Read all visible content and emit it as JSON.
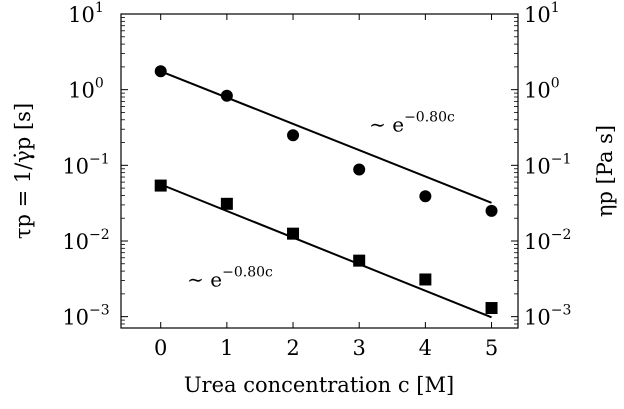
{
  "chart_data": {
    "type": "scatter",
    "xlabel": "Urea concentration c [M]",
    "ylabel_left": "τp = 1/γ̇p [s]",
    "ylabel_right": "ηp [Pa s]",
    "x_ticks": [
      "0",
      "1",
      "2",
      "3",
      "4",
      "5"
    ],
    "y_ticks_left": [
      {
        "base": "10",
        "exp": "−3"
      },
      {
        "base": "10",
        "exp": "−2"
      },
      {
        "base": "10",
        "exp": "−1"
      },
      {
        "base": "10",
        "exp": "0"
      },
      {
        "base": "10",
        "exp": "1"
      }
    ],
    "y_ticks_right": [
      {
        "base": "10",
        "exp": "−3"
      },
      {
        "base": "10",
        "exp": "−2"
      },
      {
        "base": "10",
        "exp": "−1"
      },
      {
        "base": "10",
        "exp": "0"
      },
      {
        "base": "10",
        "exp": "1"
      }
    ],
    "xlim": [
      -0.6,
      5.4
    ],
    "ylim_log10": [
      -3.15,
      1.0
    ],
    "yscale": "log",
    "grid": false,
    "series": [
      {
        "marker": "circle",
        "x": [
          0,
          1,
          2,
          3,
          4,
          5
        ],
        "y": [
          1.75,
          0.83,
          0.25,
          0.088,
          0.039,
          0.025
        ],
        "fit": {
          "x": [
            0,
            5
          ],
          "y": [
            1.75,
            0.032
          ]
        }
      },
      {
        "marker": "square",
        "x": [
          0,
          1,
          2,
          3,
          4,
          5
        ],
        "y": [
          0.054,
          0.031,
          0.0125,
          0.0055,
          0.0031,
          0.0013
        ],
        "fit": {
          "x": [
            0,
            5
          ],
          "y": [
            0.056,
            0.00098
          ]
        }
      }
    ],
    "annotations": [
      {
        "text_main": "∼ e",
        "text_sup": "−0.80c",
        "at": {
          "x": 3.15,
          "y": 0.28
        }
      },
      {
        "text_main": "∼ e",
        "text_sup": "−0.80c",
        "at": {
          "x": 0.4,
          "y": 0.0025
        }
      }
    ]
  }
}
